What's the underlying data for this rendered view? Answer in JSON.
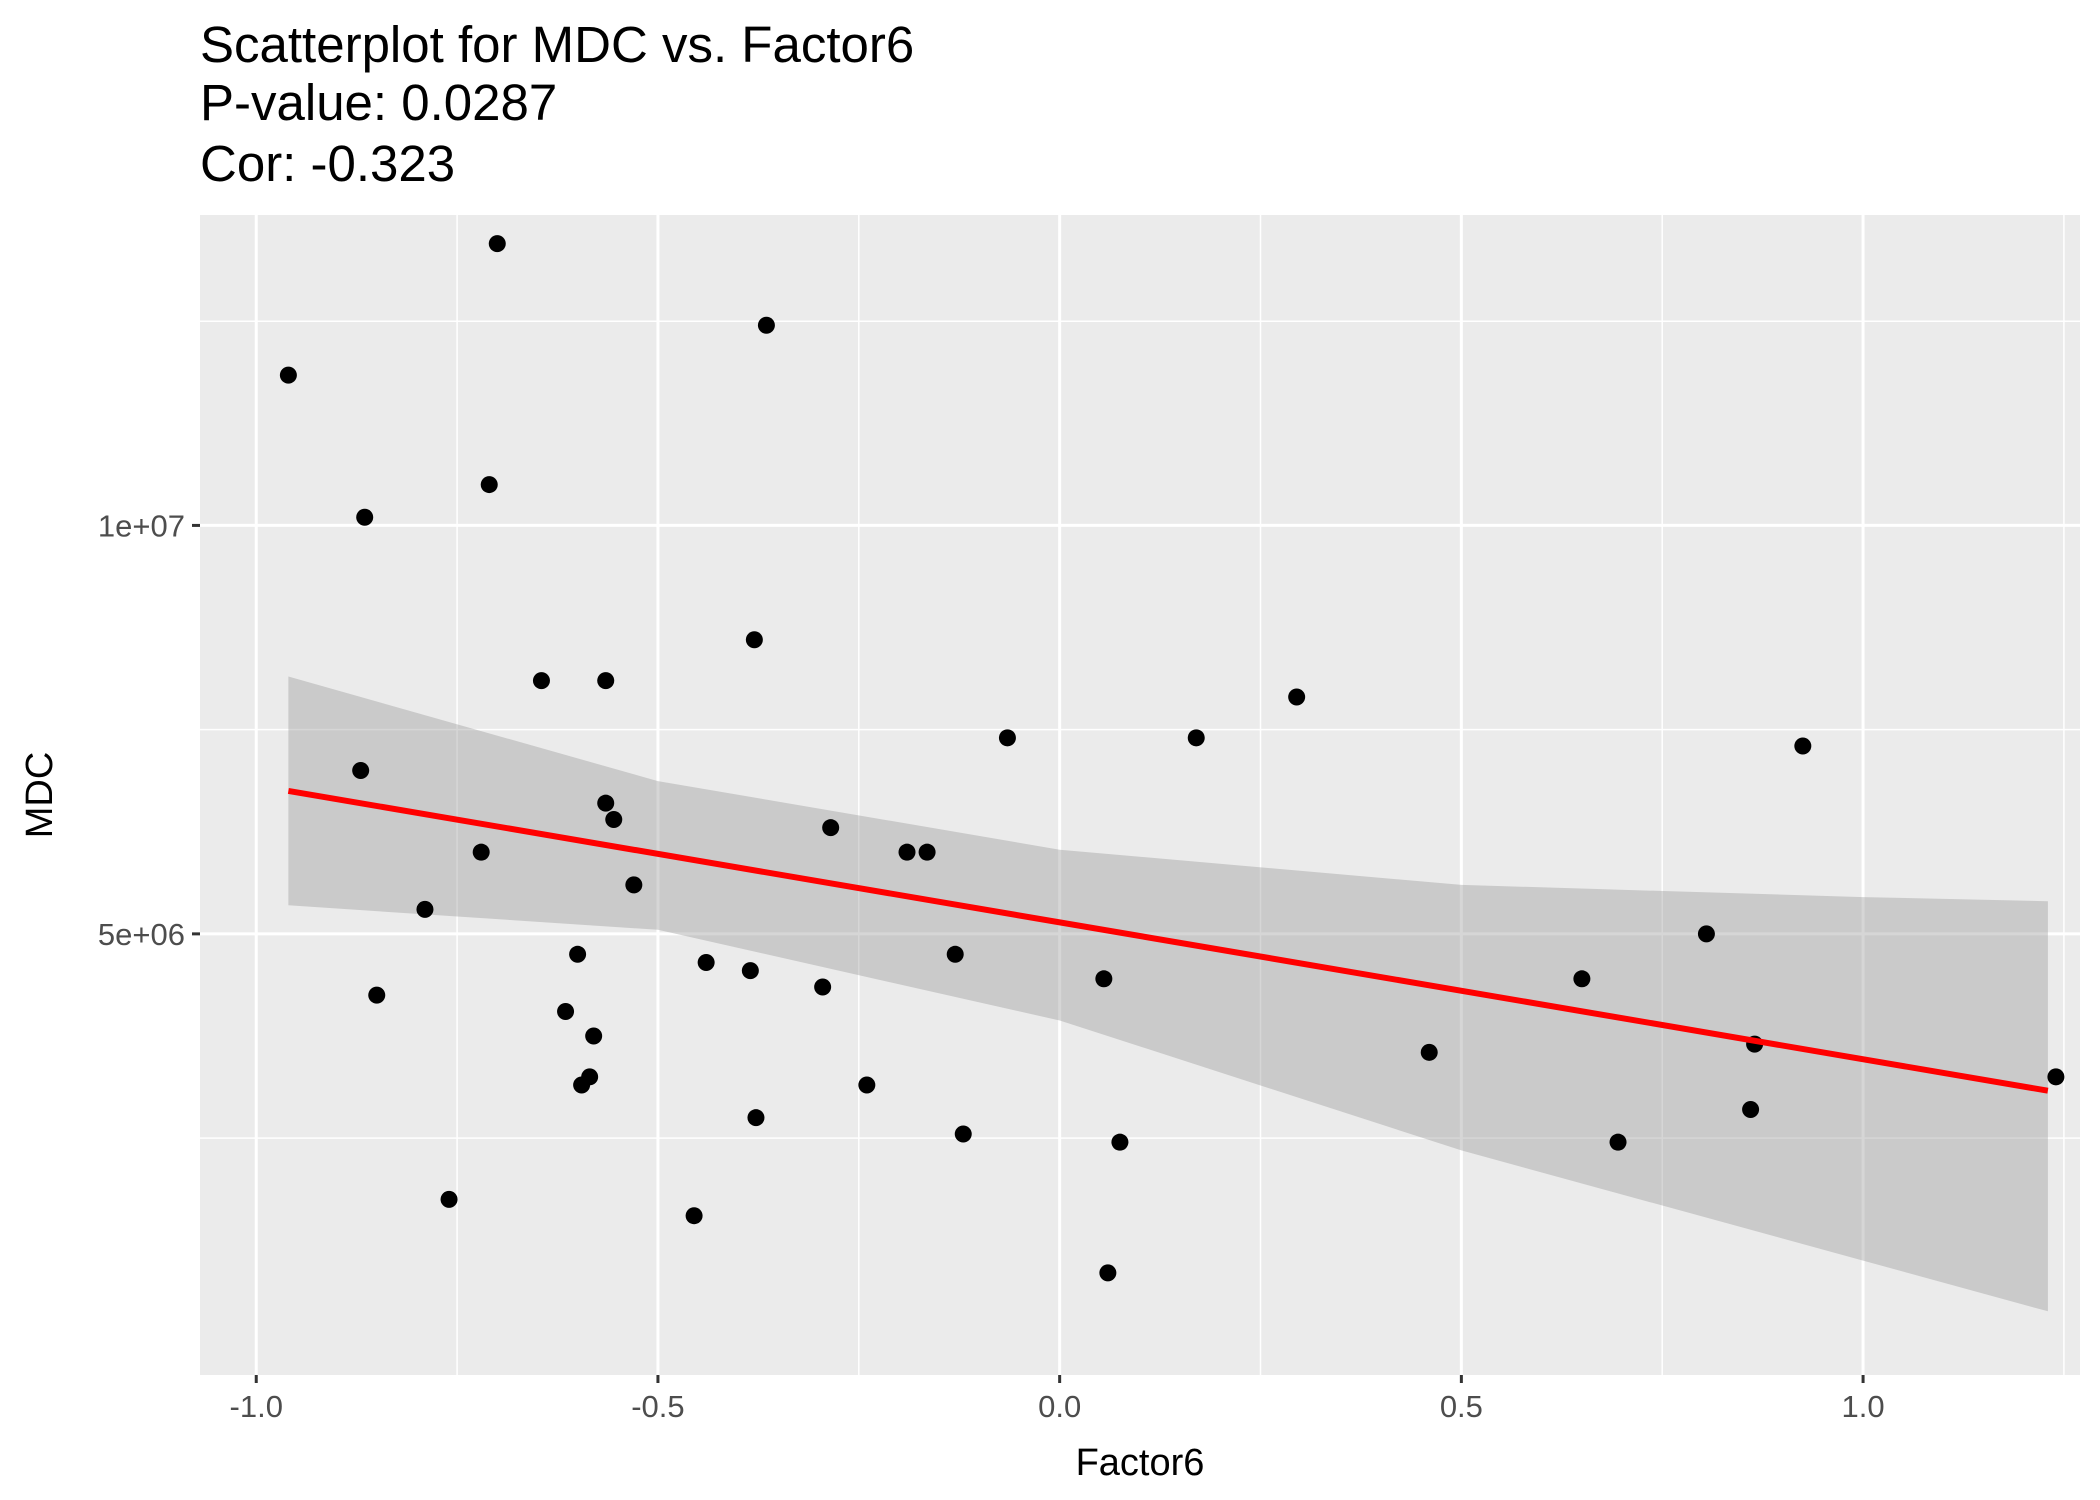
{
  "chart_data": {
    "type": "scatter",
    "title_lines": [
      "Scatterplot for MDC vs. Factor6",
      "P-value: 0.0287",
      "Cor: -0.323"
    ],
    "xlabel": "Factor6",
    "ylabel": "MDC",
    "xlim": [
      -1.07,
      1.27
    ],
    "ylim": [
      -400000,
      13800000
    ],
    "x_ticks": [
      -1.0,
      -0.5,
      0.0,
      0.5,
      1.0
    ],
    "x_tick_labels": [
      "-1.0",
      "-0.5",
      "0.0",
      "0.5",
      "1.0"
    ],
    "y_ticks": [
      5000000,
      10000000
    ],
    "y_tick_labels": [
      "5e+06",
      "1e+07"
    ],
    "grid": true,
    "panel_color": "#ebebeb",
    "point_color": "#000000",
    "fit_line": {
      "method": "linear",
      "color": "#ff0000",
      "x": [
        -0.96,
        1.23
      ],
      "y": [
        6750000,
        3080000
      ]
    },
    "confidence_band": {
      "color": "#999999",
      "x": [
        -0.96,
        -0.5,
        0.0,
        0.5,
        1.0,
        1.23
      ],
      "lower": [
        5350000,
        5050000,
        3940000,
        2350000,
        1000000,
        380000
      ],
      "upper": [
        8150000,
        6870000,
        6030000,
        5600000,
        5450000,
        5400000
      ]
    },
    "points": [
      {
        "x": -0.96,
        "y": 11840000
      },
      {
        "x": -0.87,
        "y": 7000000
      },
      {
        "x": -0.865,
        "y": 10100000
      },
      {
        "x": -0.85,
        "y": 4250000
      },
      {
        "x": -0.79,
        "y": 5300000
      },
      {
        "x": -0.76,
        "y": 1750000
      },
      {
        "x": -0.72,
        "y": 6000000
      },
      {
        "x": -0.71,
        "y": 10500000
      },
      {
        "x": -0.7,
        "y": 13450000
      },
      {
        "x": -0.645,
        "y": 8100000
      },
      {
        "x": -0.615,
        "y": 4050000
      },
      {
        "x": -0.6,
        "y": 4750000
      },
      {
        "x": -0.595,
        "y": 3150000
      },
      {
        "x": -0.585,
        "y": 3250000
      },
      {
        "x": -0.58,
        "y": 3750000
      },
      {
        "x": -0.565,
        "y": 8100000
      },
      {
        "x": -0.565,
        "y": 6600000
      },
      {
        "x": -0.555,
        "y": 6400000
      },
      {
        "x": -0.53,
        "y": 5600000
      },
      {
        "x": -0.455,
        "y": 1550000
      },
      {
        "x": -0.44,
        "y": 4650000
      },
      {
        "x": -0.385,
        "y": 4550000
      },
      {
        "x": -0.38,
        "y": 8600000
      },
      {
        "x": -0.378,
        "y": 2750000
      },
      {
        "x": -0.365,
        "y": 12450000
      },
      {
        "x": -0.295,
        "y": 4350000
      },
      {
        "x": -0.285,
        "y": 6300000
      },
      {
        "x": -0.24,
        "y": 3150000
      },
      {
        "x": -0.19,
        "y": 6000000
      },
      {
        "x": -0.165,
        "y": 6000000
      },
      {
        "x": -0.13,
        "y": 4750000
      },
      {
        "x": -0.12,
        "y": 2550000
      },
      {
        "x": -0.065,
        "y": 7400000
      },
      {
        "x": 0.055,
        "y": 4450000
      },
      {
        "x": 0.06,
        "y": 850000
      },
      {
        "x": 0.075,
        "y": 2450000
      },
      {
        "x": 0.17,
        "y": 7400000
      },
      {
        "x": 0.295,
        "y": 7900000
      },
      {
        "x": 0.46,
        "y": 3550000
      },
      {
        "x": 0.65,
        "y": 4450000
      },
      {
        "x": 0.695,
        "y": 2450000
      },
      {
        "x": 0.805,
        "y": 5000000
      },
      {
        "x": 0.86,
        "y": 2850000
      },
      {
        "x": 0.865,
        "y": 3650000
      },
      {
        "x": 0.925,
        "y": 7300000
      },
      {
        "x": 1.24,
        "y": 3250000
      }
    ]
  }
}
